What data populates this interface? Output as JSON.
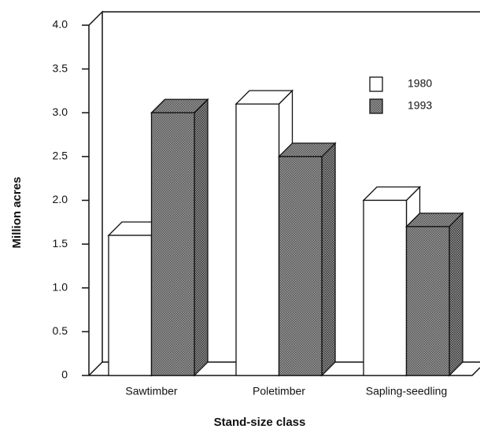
{
  "chart_data": {
    "type": "bar3d",
    "y_label": "Million acres",
    "x_label": "Stand-size class",
    "categories": [
      "Sawtimber",
      "Poletimber",
      "Sapling-seedling"
    ],
    "series": [
      {
        "name": "1980",
        "color": "#ffffff",
        "values": [
          1.6,
          3.1,
          2.0
        ]
      },
      {
        "name": "1993",
        "color": "#9a9a9a",
        "values": [
          3.0,
          2.5,
          1.7
        ]
      }
    ],
    "ylim": [
      0,
      4
    ],
    "yticks": [
      0,
      0.5,
      {
        "value": 1,
        "label": "1.0"
      },
      1.5,
      {
        "value": 2,
        "label": "2.0"
      },
      2.5,
      {
        "value": 3,
        "label": "3.0"
      },
      3.5,
      {
        "value": 4,
        "label": "4.0"
      }
    ],
    "legend": "upper right"
  }
}
